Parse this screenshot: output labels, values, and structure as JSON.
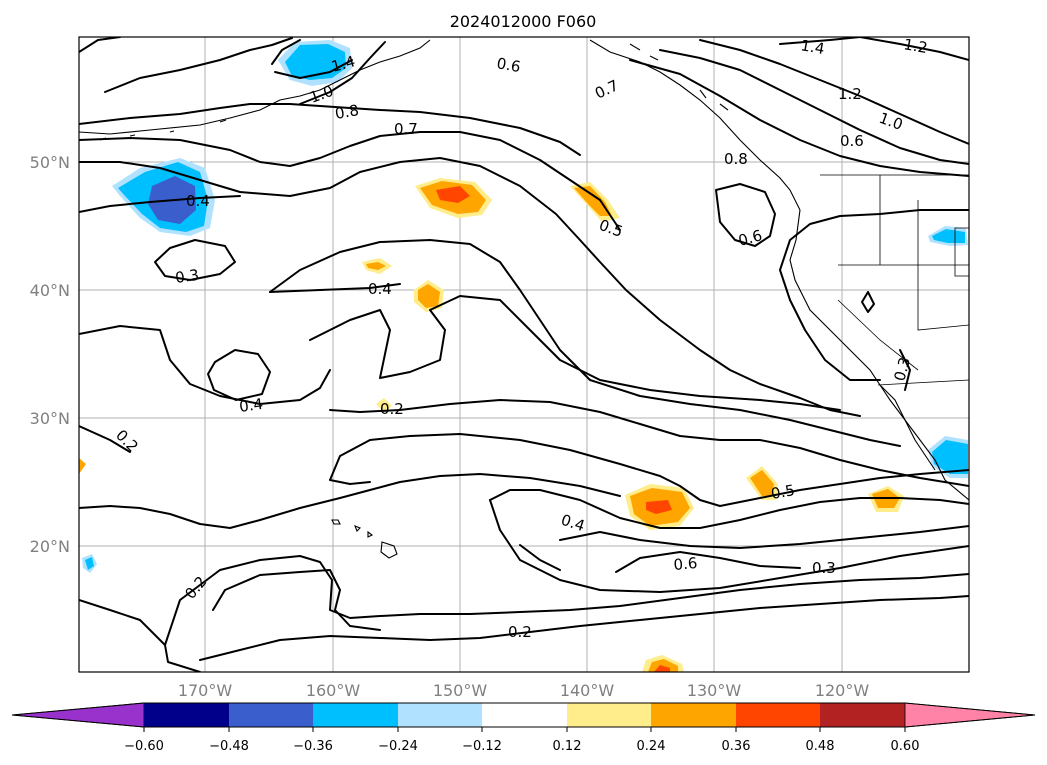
{
  "title": "2024012000 F060",
  "map": {
    "lat_labels": [
      "50°N",
      "40°N",
      "30°N",
      "20°N"
    ],
    "lon_labels": [
      "170°W",
      "160°W",
      "150°W",
      "140°W",
      "130°W",
      "120°W"
    ],
    "contour_labels": [
      "1.4",
      "1.2",
      "0.6",
      "0.7",
      "1.2",
      "1.0",
      "1.4",
      "1.0",
      "0.8",
      "0.7",
      "0.6",
      "0.8",
      "0.4",
      "0.5",
      "0.6",
      "0.3",
      "0.4",
      "0.4",
      "0.2",
      "0.2",
      "0.4",
      "0.5",
      "0.6",
      "0.3",
      "0.2",
      "0.2",
      "0.3"
    ]
  },
  "colorbar": {
    "tick_labels": [
      "−0.60",
      "−0.48",
      "−0.36",
      "−0.24",
      "−0.12",
      "0.12",
      "0.24",
      "0.36",
      "0.48",
      "0.60"
    ],
    "bins": [
      "#9932cc",
      "#00008b",
      "#3a5fcd",
      "#00bfff",
      "#b0e2ff",
      "#ffffff",
      "#ffec8b",
      "#ffa500",
      "#ff4500",
      "#b22222",
      "#ff83a6"
    ]
  }
}
